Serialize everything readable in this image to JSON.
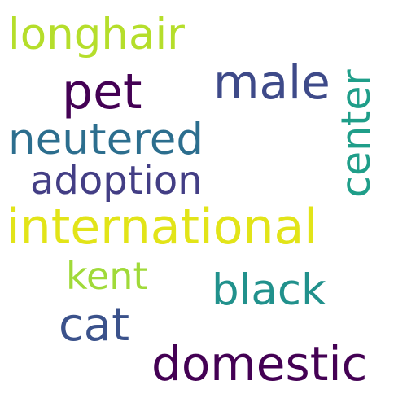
{
  "words": [
    {
      "text": "international",
      "color": "#e2e418"
    },
    {
      "text": "domestic",
      "color": "#440154"
    },
    {
      "text": "neutered",
      "color": "#2c6e8e"
    },
    {
      "text": "black",
      "color": "#21918c"
    },
    {
      "text": "longhair",
      "color": "#b5de2b"
    },
    {
      "text": "adoption",
      "color": "#433e85"
    },
    {
      "text": "pet",
      "color": "#440154"
    },
    {
      "text": "male",
      "color": "#3e4a89"
    },
    {
      "text": "cat",
      "color": "#3b528b"
    },
    {
      "text": "kent",
      "color": "#a0da39"
    },
    {
      "text": "center",
      "color": "#1f9e89"
    }
  ]
}
